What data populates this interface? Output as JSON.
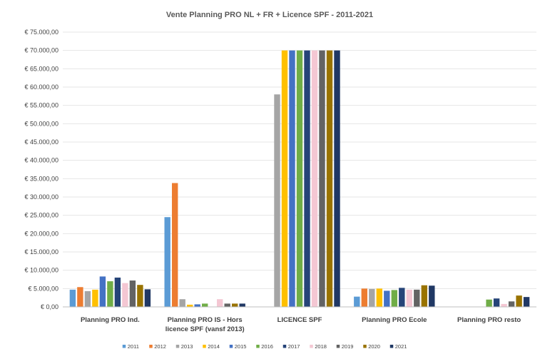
{
  "chart_data": {
    "type": "bar",
    "title": "Vente Planning PRO NL + FR + Licence SPF - 2011-2021",
    "categories": [
      [
        "Planning PRO Ind."
      ],
      [
        "Planning PRO IS - Hors",
        "licence SPF (vansf 2013)"
      ],
      [
        "LICENCE SPF"
      ],
      [
        "Planning PRO Ecole"
      ],
      [
        "Planning PRO resto"
      ]
    ],
    "ylim": [
      0,
      75000
    ],
    "y_ticks": [
      "€ 0,00",
      "€ 5.000,00",
      "€ 10.000,00",
      "€ 15.000,00",
      "€ 20.000,00",
      "€ 25.000,00",
      "€ 30.000,00",
      "€ 35.000,00",
      "€ 40.000,00",
      "€ 45.000,00",
      "€ 50.000,00",
      "€ 55.000,00",
      "€ 60.000,00",
      "€ 65.000,00",
      "€ 70.000,00",
      "€ 75.000,00"
    ],
    "grid": true,
    "legend_position": "bottom",
    "series": [
      {
        "name": "2011",
        "color": "#5b9bd5",
        "values": [
          4700,
          24500,
          0,
          2800,
          0
        ]
      },
      {
        "name": "2012",
        "color": "#ed7d31",
        "values": [
          5400,
          33800,
          0,
          5000,
          0
        ]
      },
      {
        "name": "2013",
        "color": "#a5a5a5",
        "values": [
          4300,
          2100,
          58000,
          4900,
          0
        ]
      },
      {
        "name": "2014",
        "color": "#ffc000",
        "values": [
          4700,
          600,
          70000,
          5000,
          0
        ]
      },
      {
        "name": "2015",
        "color": "#4472c4",
        "values": [
          8300,
          700,
          70000,
          4400,
          0
        ]
      },
      {
        "name": "2016",
        "color": "#70ad47",
        "values": [
          7000,
          900,
          70000,
          4600,
          2000
        ]
      },
      {
        "name": "2017",
        "color": "#264478",
        "values": [
          8000,
          0,
          70000,
          5200,
          2300
        ]
      },
      {
        "name": "2018",
        "color": "#f4c7d3",
        "values": [
          6500,
          2100,
          70000,
          4700,
          800
        ]
      },
      {
        "name": "2019",
        "color": "#636363",
        "values": [
          7200,
          900,
          70000,
          4700,
          1500
        ]
      },
      {
        "name": "2020",
        "color": "#997300",
        "values": [
          6000,
          900,
          70000,
          5900,
          3100
        ]
      },
      {
        "name": "2021",
        "color": "#203864",
        "values": [
          4800,
          900,
          70000,
          5800,
          2700
        ]
      }
    ]
  }
}
